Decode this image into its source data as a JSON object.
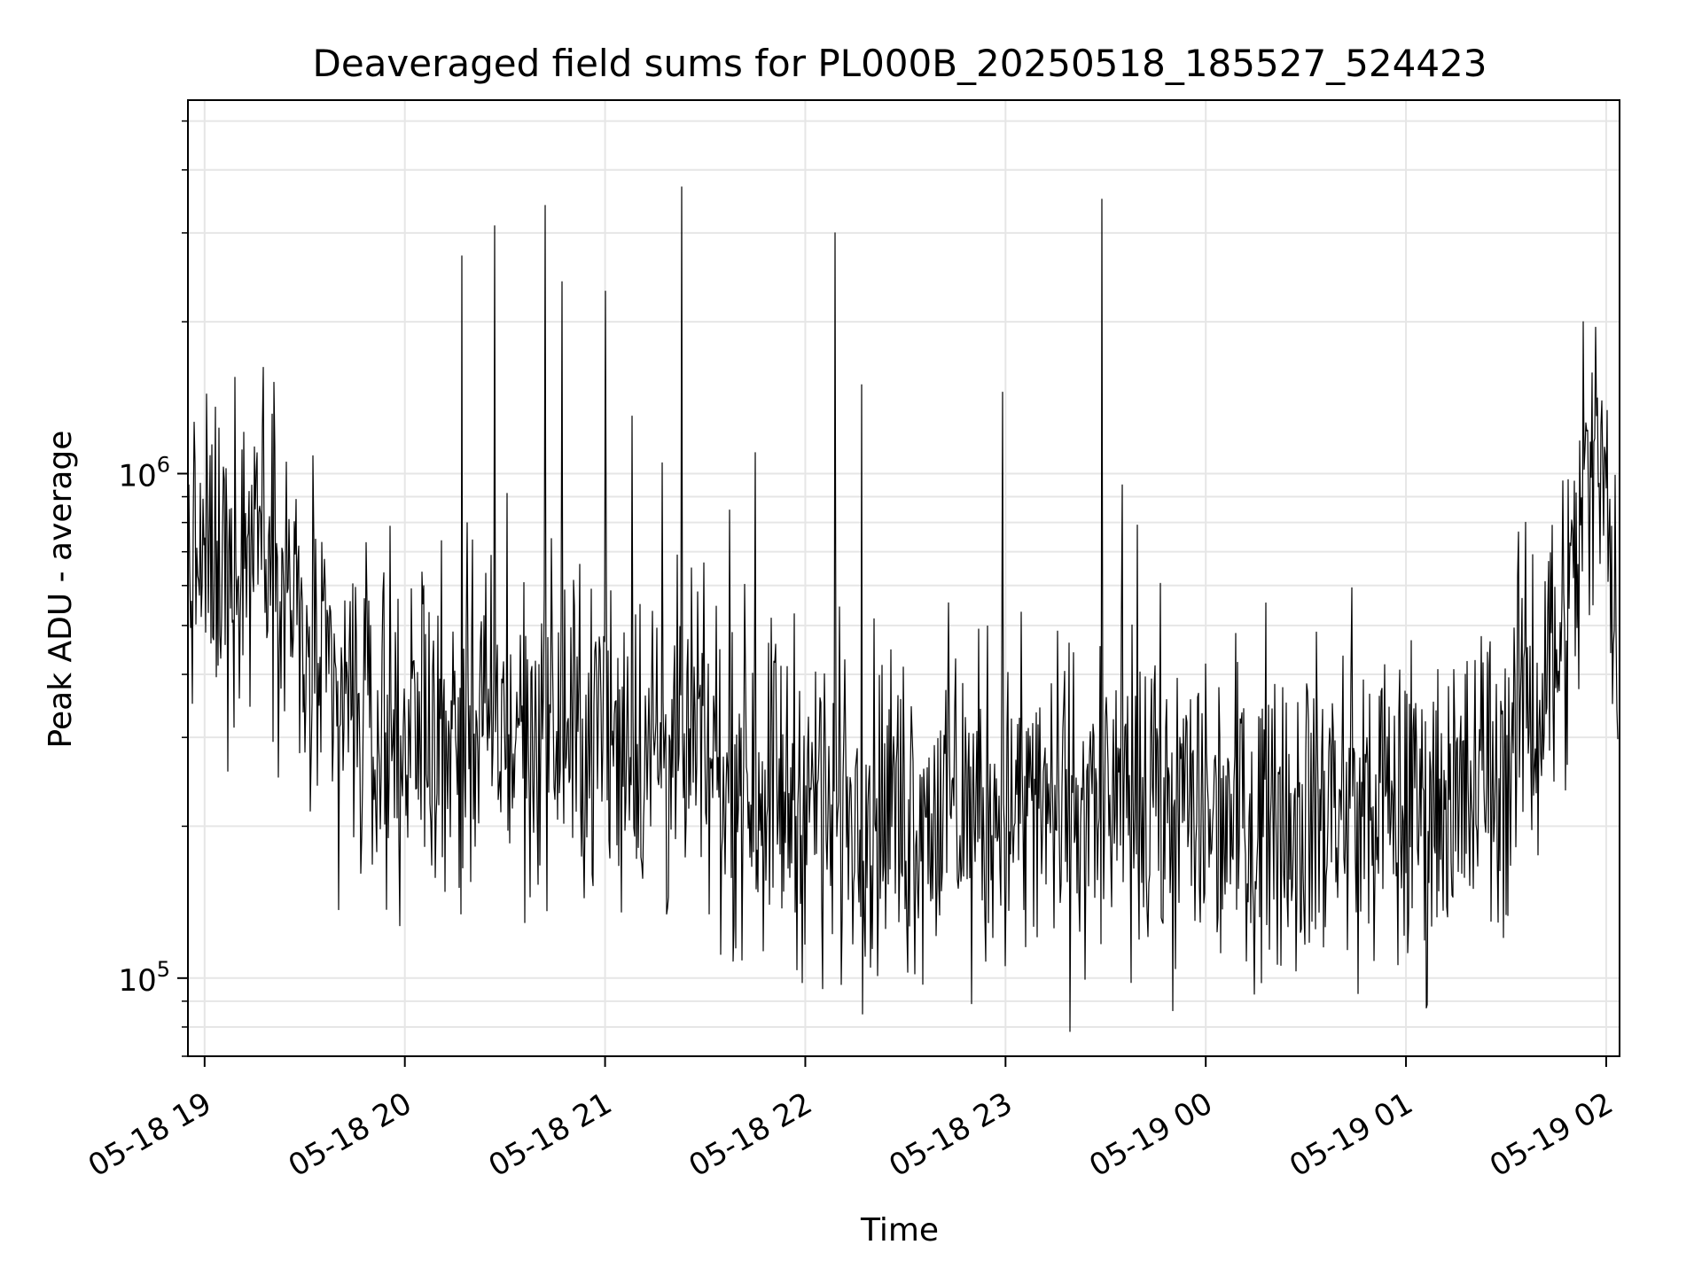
{
  "chart_data": {
    "type": "line",
    "title": "Deaveraged field sums for PL000B_20250518_185527_524423",
    "xlabel": "Time",
    "ylabel": "Peak ADU - average",
    "y_scale": "log",
    "xlim": [
      "2025-05-18 18:55",
      "2025-05-19 02:04"
    ],
    "ylim": [
      70000,
      5500000
    ],
    "x_tick_labels": [
      "05-18 19",
      "05-18 20",
      "05-18 21",
      "05-18 22",
      "05-18 23",
      "05-19 00",
      "05-19 01",
      "05-19 02"
    ],
    "x_tick_times": [
      "2025-05-18 19:00",
      "2025-05-18 20:00",
      "2025-05-18 21:00",
      "2025-05-18 22:00",
      "2025-05-18 23:00",
      "2025-05-19 00:00",
      "2025-05-19 01:00",
      "2025-05-19 02:00"
    ],
    "y_ticks": [
      {
        "base": "10",
        "exp": "5",
        "value": 100000
      },
      {
        "base": "10",
        "exp": "6",
        "value": 1000000
      }
    ],
    "grid": true,
    "line_color": "#000000",
    "baseline": {
      "x": [
        "2025-05-18 18:55",
        "2025-05-18 19:10",
        "2025-05-18 19:15",
        "2025-05-18 19:20",
        "2025-05-18 19:30",
        "2025-05-18 19:45",
        "2025-05-18 20:00",
        "2025-05-18 20:30",
        "2025-05-18 21:00",
        "2025-05-18 21:30",
        "2025-05-18 22:00",
        "2025-05-18 22:30",
        "2025-05-18 23:00",
        "2025-05-18 23:30",
        "2025-05-19 00:00",
        "2025-05-19 00:30",
        "2025-05-19 01:00",
        "2025-05-19 01:20",
        "2025-05-19 01:30",
        "2025-05-19 01:40",
        "2025-05-19 01:50",
        "2025-05-19 01:55",
        "2025-05-19 02:00",
        "2025-05-19 02:01",
        "2025-05-19 02:04"
      ],
      "y": [
        650000,
        700000,
        850000,
        750000,
        420000,
        320000,
        320000,
        310000,
        300000,
        270000,
        230000,
        215000,
        215000,
        215000,
        220000,
        220000,
        215000,
        230000,
        280000,
        380000,
        600000,
        900000,
        1600000,
        550000,
        520000
      ]
    },
    "spikes": [
      {
        "x": "2025-05-18 19:15",
        "y": 1130000
      },
      {
        "x": "2025-05-18 20:17",
        "y": 2700000
      },
      {
        "x": "2025-05-18 20:27",
        "y": 3100000
      },
      {
        "x": "2025-05-18 20:42",
        "y": 3400000
      },
      {
        "x": "2025-05-18 20:47",
        "y": 2400000
      },
      {
        "x": "2025-05-18 21:00",
        "y": 2300000
      },
      {
        "x": "2025-05-18 21:08",
        "y": 1300000
      },
      {
        "x": "2025-05-18 21:17",
        "y": 1050000
      },
      {
        "x": "2025-05-18 21:23",
        "y": 3700000
      },
      {
        "x": "2025-05-18 21:45",
        "y": 1100000
      },
      {
        "x": "2025-05-18 22:09",
        "y": 3000000
      },
      {
        "x": "2025-05-18 22:17",
        "y": 1500000
      },
      {
        "x": "2025-05-18 22:59",
        "y": 1450000
      },
      {
        "x": "2025-05-18 23:29",
        "y": 3500000
      },
      {
        "x": "2025-05-18 23:35",
        "y": 950000
      },
      {
        "x": "2025-05-19 01:53",
        "y": 2000000
      }
    ]
  }
}
